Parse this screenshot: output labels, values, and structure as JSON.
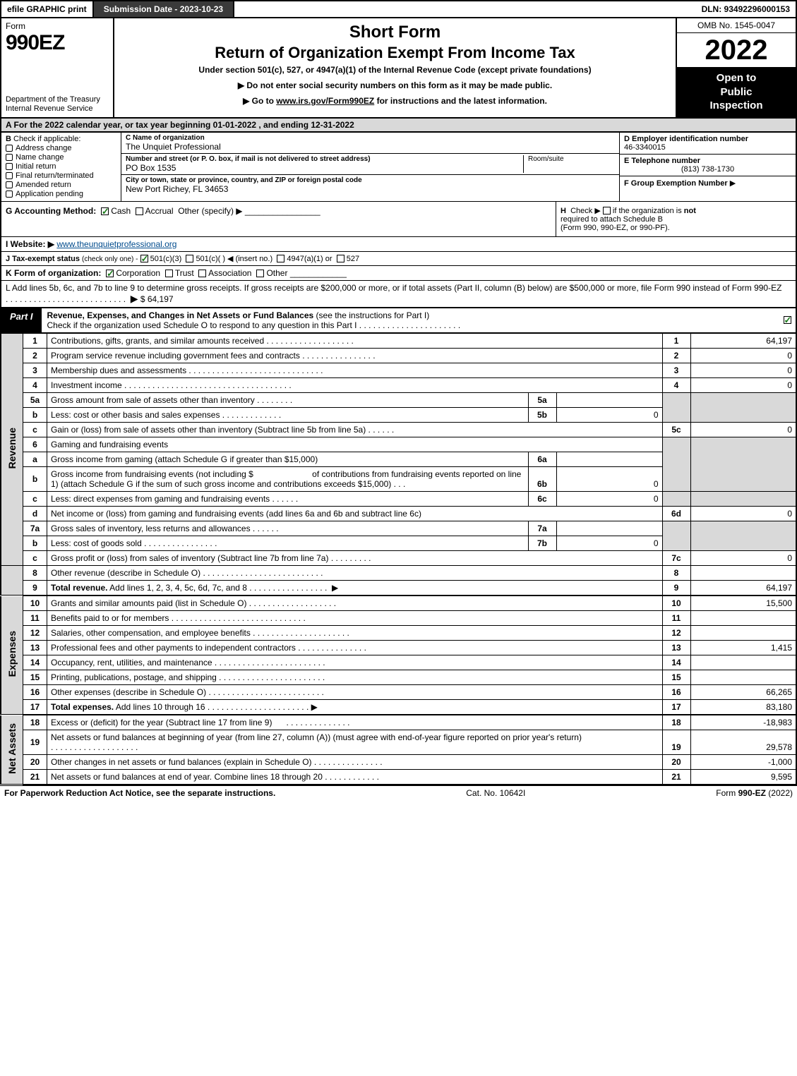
{
  "top": {
    "efile": "efile GRAPHIC print",
    "submission": "Submission Date - 2023-10-23",
    "dln": "DLN: 93492296000153"
  },
  "header": {
    "form_word": "Form",
    "form_number": "990EZ",
    "dept1": "Department of the Treasury",
    "dept2": "Internal Revenue Service",
    "short_form": "Short Form",
    "title": "Return of Organization Exempt From Income Tax",
    "under_section": "Under section 501(c), 527, or 4947(a)(1) of the Internal Revenue Code (except private foundations)",
    "no_ssn": "▶ Do not enter social security numbers on this form as it may be made public.",
    "goto_pre": "▶ Go to ",
    "goto_link": "www.irs.gov/Form990EZ",
    "goto_post": " for instructions and the latest information.",
    "omb": "OMB No. 1545-0047",
    "year": "2022",
    "open1": "Open to",
    "open2": "Public",
    "open3": "Inspection"
  },
  "a": "A  For the 2022 calendar year, or tax year beginning 01-01-2022 , and ending 12-31-2022",
  "b": {
    "label": "B",
    "check_if": "Check if applicable:",
    "opts": [
      "Address change",
      "Name change",
      "Initial return",
      "Final return/terminated",
      "Amended return",
      "Application pending"
    ]
  },
  "c": {
    "name_label": "C Name of organization",
    "name": "The Unquiet Professional",
    "street_label": "Number and street (or P. O. box, if mail is not delivered to street address)",
    "street": "PO Box 1535",
    "room_label": "Room/suite",
    "city_label": "City or town, state or province, country, and ZIP or foreign postal code",
    "city": "New Port Richey, FL  34653"
  },
  "d": {
    "label": "D Employer identification number",
    "value": "46-3340015"
  },
  "e": {
    "label": "E Telephone number",
    "value": "(813) 738-1730"
  },
  "f": {
    "label": "F Group Exemption Number",
    "arrow": "▶"
  },
  "g": {
    "label": "G Accounting Method:",
    "cash": "Cash",
    "accrual": "Accrual",
    "other": "Other (specify) ▶"
  },
  "h": {
    "label": "H",
    "text1": "Check ▶",
    "text2": "if the organization is ",
    "not": "not",
    "text3": "required to attach Schedule B",
    "text4": "(Form 990, 990-EZ, or 990-PF)."
  },
  "i": {
    "label": "I Website: ▶",
    "value": "www.theunquietprofessional.org"
  },
  "j": {
    "label": "J Tax-exempt status",
    "sub": "(check only one) -",
    "opt1": "501(c)(3)",
    "opt2": "501(c)(  ) ◀ (insert no.)",
    "opt3": "4947(a)(1) or",
    "opt4": "527"
  },
  "k": {
    "label": "K Form of organization:",
    "opts": [
      "Corporation",
      "Trust",
      "Association",
      "Other"
    ]
  },
  "l": {
    "text": "L Add lines 5b, 6c, and 7b to line 9 to determine gross receipts. If gross receipts are $200,000 or more, or if total assets (Part II, column (B) below) are $500,000 or more, file Form 990 instead of Form 990-EZ",
    "arrow": "▶",
    "amount": "$ 64,197"
  },
  "part1": {
    "label": "Part I",
    "title": "Revenue, Expenses, and Changes in Net Assets or Fund Balances",
    "title_sub": "(see the instructions for Part I)",
    "check_line": "Check if the organization used Schedule O to respond to any question in this Part I"
  },
  "side_labels": {
    "revenue": "Revenue",
    "expenses": "Expenses",
    "netassets": "Net Assets"
  },
  "lines": {
    "1": {
      "n": "1",
      "d": "Contributions, gifts, grants, and similar amounts received",
      "rn": "1",
      "rv": "64,197"
    },
    "2": {
      "n": "2",
      "d": "Program service revenue including government fees and contracts",
      "rn": "2",
      "rv": "0"
    },
    "3": {
      "n": "3",
      "d": "Membership dues and assessments",
      "rn": "3",
      "rv": "0"
    },
    "4": {
      "n": "4",
      "d": "Investment income",
      "rn": "4",
      "rv": "0"
    },
    "5a": {
      "n": "5a",
      "d": "Gross amount from sale of assets other than inventory",
      "sn": "5a",
      "sv": ""
    },
    "5b": {
      "n": "b",
      "d": "Less: cost or other basis and sales expenses",
      "sn": "5b",
      "sv": "0"
    },
    "5c": {
      "n": "c",
      "d": "Gain or (loss) from sale of assets other than inventory (Subtract line 5b from line 5a)",
      "rn": "5c",
      "rv": "0"
    },
    "6": {
      "n": "6",
      "d": "Gaming and fundraising events"
    },
    "6a": {
      "n": "a",
      "d": "Gross income from gaming (attach Schedule G if greater than $15,000)",
      "sn": "6a",
      "sv": ""
    },
    "6b": {
      "n": "b",
      "d1": "Gross income from fundraising events (not including $",
      "d2": "of contributions from fundraising events reported on line 1) (attach Schedule G if the sum of such gross income and contributions exceeds $15,000)",
      "sn": "6b",
      "sv": "0"
    },
    "6c": {
      "n": "c",
      "d": "Less: direct expenses from gaming and fundraising events",
      "sn": "6c",
      "sv": "0"
    },
    "6d": {
      "n": "d",
      "d": "Net income or (loss) from gaming and fundraising events (add lines 6a and 6b and subtract line 6c)",
      "rn": "6d",
      "rv": "0"
    },
    "7a": {
      "n": "7a",
      "d": "Gross sales of inventory, less returns and allowances",
      "sn": "7a",
      "sv": ""
    },
    "7b": {
      "n": "b",
      "d": "Less: cost of goods sold",
      "sn": "7b",
      "sv": "0"
    },
    "7c": {
      "n": "c",
      "d": "Gross profit or (loss) from sales of inventory (Subtract line 7b from line 7a)",
      "rn": "7c",
      "rv": "0"
    },
    "8": {
      "n": "8",
      "d": "Other revenue (describe in Schedule O)",
      "rn": "8",
      "rv": ""
    },
    "9": {
      "n": "9",
      "d": "Total revenue.",
      "d2": " Add lines 1, 2, 3, 4, 5c, 6d, 7c, and 8",
      "rn": "9",
      "rv": "64,197"
    },
    "10": {
      "n": "10",
      "d": "Grants and similar amounts paid (list in Schedule O)",
      "rn": "10",
      "rv": "15,500"
    },
    "11": {
      "n": "11",
      "d": "Benefits paid to or for members",
      "rn": "11",
      "rv": ""
    },
    "12": {
      "n": "12",
      "d": "Salaries, other compensation, and employee benefits",
      "rn": "12",
      "rv": ""
    },
    "13": {
      "n": "13",
      "d": "Professional fees and other payments to independent contractors",
      "rn": "13",
      "rv": "1,415"
    },
    "14": {
      "n": "14",
      "d": "Occupancy, rent, utilities, and maintenance",
      "rn": "14",
      "rv": ""
    },
    "15": {
      "n": "15",
      "d": "Printing, publications, postage, and shipping",
      "rn": "15",
      "rv": ""
    },
    "16": {
      "n": "16",
      "d": "Other expenses (describe in Schedule O)",
      "rn": "16",
      "rv": "66,265"
    },
    "17": {
      "n": "17",
      "d": "Total expenses.",
      "d2": " Add lines 10 through 16",
      "rn": "17",
      "rv": "83,180"
    },
    "18": {
      "n": "18",
      "d": "Excess or (deficit) for the year (Subtract line 17 from line 9)",
      "rn": "18",
      "rv": "-18,983"
    },
    "19": {
      "n": "19",
      "d": "Net assets or fund balances at beginning of year (from line 27, column (A)) (must agree with end-of-year figure reported on prior year's return)",
      "rn": "19",
      "rv": "29,578"
    },
    "20": {
      "n": "20",
      "d": "Other changes in net assets or fund balances (explain in Schedule O)",
      "rn": "20",
      "rv": "-1,000"
    },
    "21": {
      "n": "21",
      "d": "Net assets or fund balances at end of year. Combine lines 18 through 20",
      "rn": "21",
      "rv": "9,595"
    }
  },
  "footer": {
    "left": "For Paperwork Reduction Act Notice, see the separate instructions.",
    "center": "Cat. No. 10642I",
    "right_pre": "Form ",
    "right_bold": "990-EZ",
    "right_post": " (2022)"
  },
  "colors": {
    "header_bg": "#3a3a3a",
    "shade": "#d9d9d9",
    "link": "#004b8d",
    "check_green": "#1a7a1a"
  }
}
